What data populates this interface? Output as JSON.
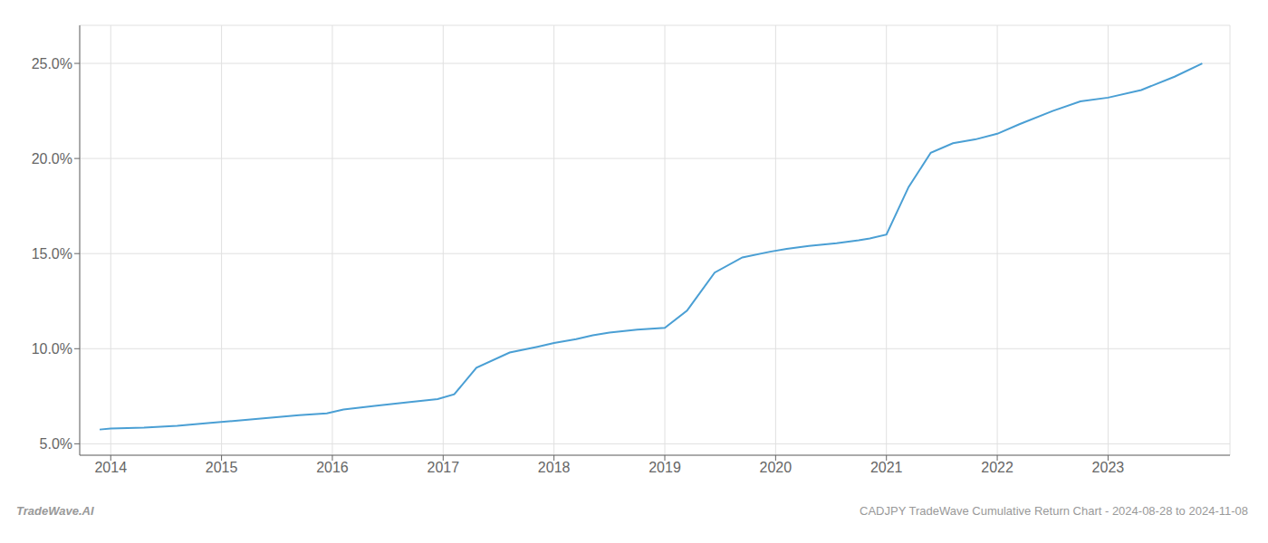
{
  "chart_data": {
    "type": "line",
    "x": [
      2013.9,
      2014.0,
      2014.3,
      2014.6,
      2014.9,
      2015.1,
      2015.4,
      2015.7,
      2015.95,
      2016.1,
      2016.4,
      2016.7,
      2016.95,
      2017.1,
      2017.3,
      2017.6,
      2017.85,
      2018.0,
      2018.2,
      2018.35,
      2018.5,
      2018.75,
      2019.0,
      2019.2,
      2019.45,
      2019.7,
      2019.95,
      2020.1,
      2020.3,
      2020.55,
      2020.75,
      2020.85,
      2021.0,
      2021.2,
      2021.4,
      2021.6,
      2021.8,
      2022.0,
      2022.2,
      2022.5,
      2022.75,
      2023.0,
      2023.3,
      2023.6,
      2023.85
    ],
    "values": [
      5.75,
      5.8,
      5.85,
      5.95,
      6.1,
      6.2,
      6.35,
      6.5,
      6.6,
      6.8,
      7.0,
      7.2,
      7.35,
      7.6,
      9.0,
      9.8,
      10.1,
      10.3,
      10.5,
      10.7,
      10.85,
      11.0,
      11.1,
      12.0,
      14.0,
      14.8,
      15.1,
      15.25,
      15.4,
      15.55,
      15.7,
      15.8,
      16.0,
      18.5,
      20.3,
      20.8,
      21.0,
      21.3,
      21.8,
      22.5,
      23.0,
      23.2,
      23.6,
      24.3,
      25.0
    ],
    "color": "#4a9fd4",
    "xlim": [
      2013.72,
      2024.1
    ],
    "ylim": [
      4.4,
      27.0
    ],
    "xticks": [
      2014,
      2015,
      2016,
      2017,
      2018,
      2019,
      2020,
      2021,
      2022,
      2023
    ],
    "yticks": [
      {
        "value": 5.0,
        "label": "5.0%"
      },
      {
        "value": 10.0,
        "label": "10.0%"
      },
      {
        "value": 15.0,
        "label": "15.0%"
      },
      {
        "value": 20.0,
        "label": "20.0%"
      },
      {
        "value": 25.0,
        "label": "25.0%"
      }
    ],
    "grid": true,
    "annotations": [
      "TradeWave.AI",
      "CADJPY TradeWave Cumulative Return Chart - 2024-08-28 to 2024-11-08"
    ]
  }
}
